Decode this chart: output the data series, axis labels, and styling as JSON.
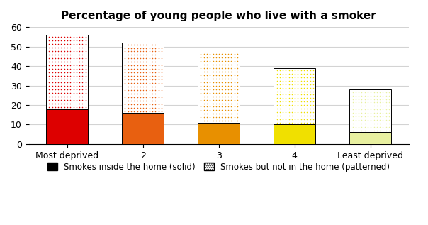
{
  "categories": [
    "Most deprived",
    "2",
    "3",
    "4",
    "Least deprived"
  ],
  "solid_values": [
    18,
    16,
    11,
    10,
    6
  ],
  "patterned_values": [
    38,
    36,
    36,
    29,
    22
  ],
  "solid_colors": [
    "#dd0000",
    "#e86010",
    "#e89000",
    "#f0e000",
    "#e8f0a0"
  ],
  "patterned_face_colors": [
    "#ffffff",
    "#ffffff",
    "#ffffff",
    "#ffffff",
    "#ffffff"
  ],
  "patterned_dot_colors": [
    "#dd0000",
    "#e86010",
    "#e89000",
    "#f0e000",
    "#e8f0a0"
  ],
  "title": "Percentage of young people who live with a smoker",
  "ylim": [
    0,
    60
  ],
  "yticks": [
    0,
    10,
    20,
    30,
    40,
    50,
    60
  ],
  "legend_solid_label": "Smokes inside the home (solid)",
  "legend_patterned_label": "Smokes but not in the home (patterned)",
  "bar_width": 0.55
}
